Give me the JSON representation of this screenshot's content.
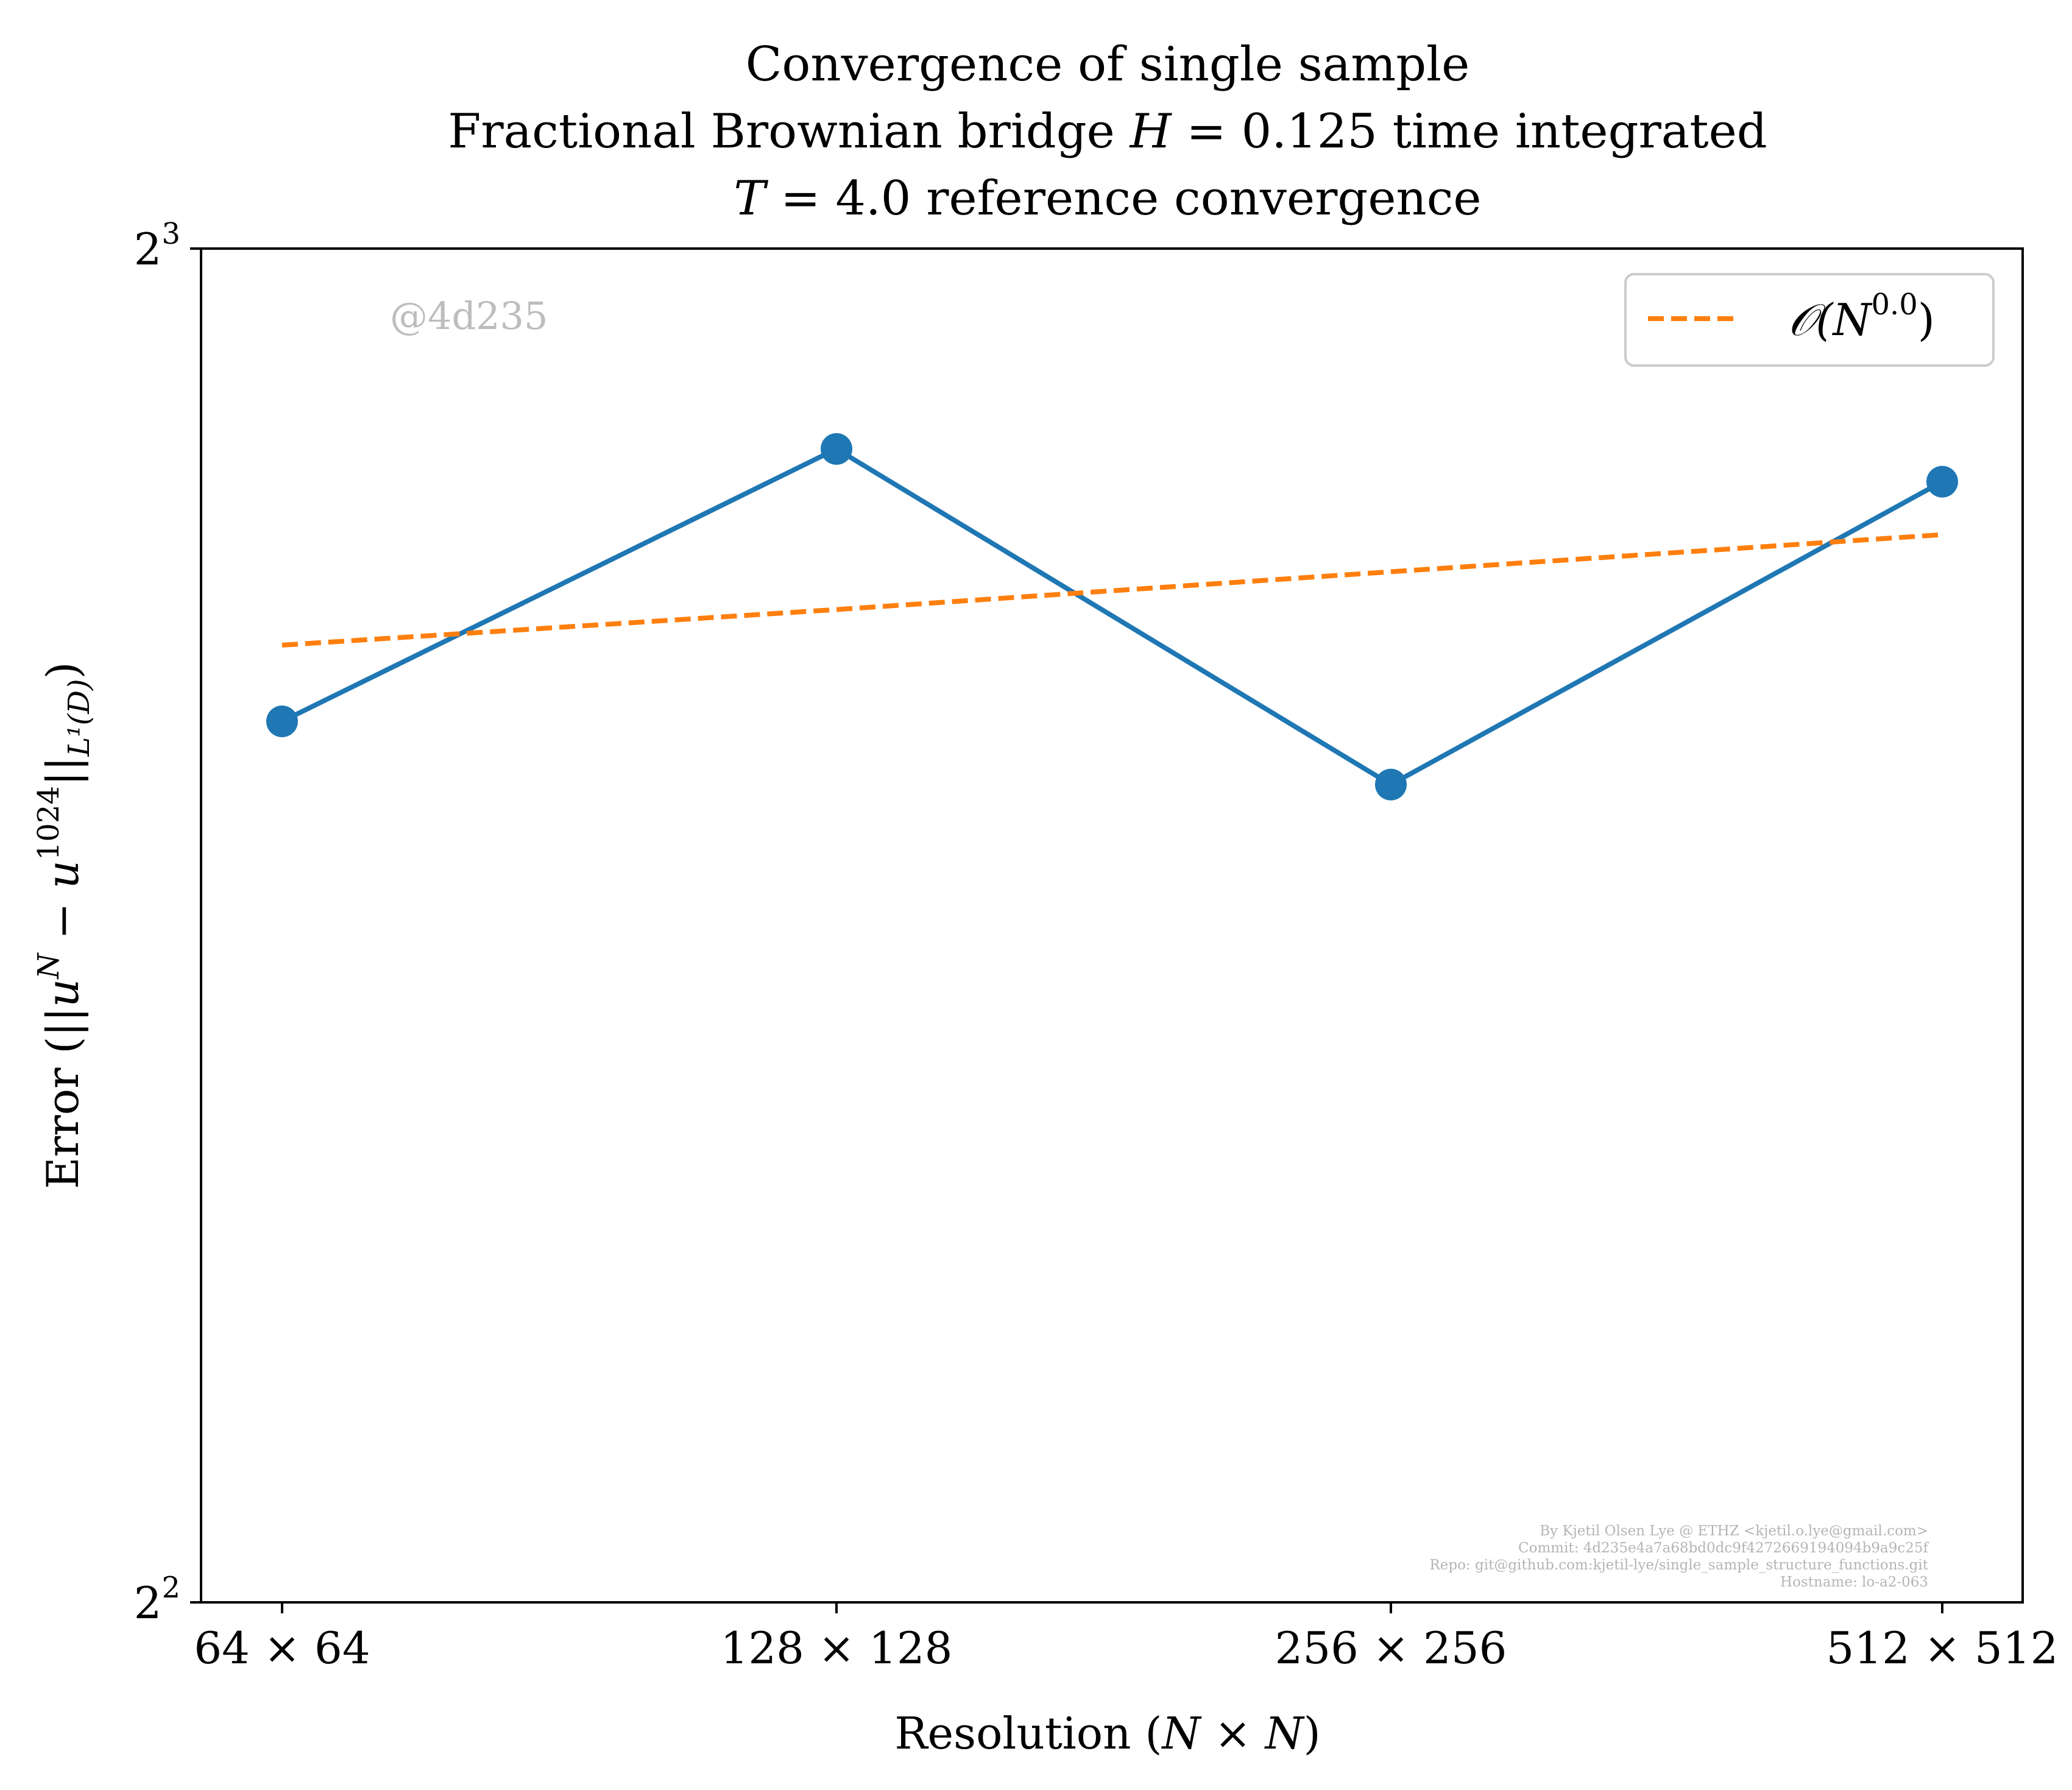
{
  "chart_data": {
    "type": "line",
    "title": {
      "line1": "Convergence of single sample",
      "line2_prefix": "Fractional Brownian bridge ",
      "line2_var": "H",
      "line2_value": " = 0.125 time integrated",
      "line3_var": "T",
      "line3_value": " = 4.0 reference convergence"
    },
    "xlabel": {
      "text": "Resolution (",
      "var1": "N",
      "times": " × ",
      "var2": "N",
      "close": ")"
    },
    "ylabel": {
      "text": "Error (||",
      "u": "u",
      "sup_n": "N",
      "minus": " − ",
      "u2": "u",
      "sup_ref": "1024",
      "bars": "||",
      "sub": "L¹(D)",
      "close": ")"
    },
    "categories": [
      "64 × 64",
      "128 × 128",
      "256 × 256",
      "512 × 512"
    ],
    "x": [
      64,
      128,
      256,
      512
    ],
    "y_scale": "log2",
    "ylim": [
      4,
      8
    ],
    "y_ticks": [
      {
        "base": "2",
        "exp": "2",
        "value": 4
      },
      {
        "base": "2",
        "exp": "3",
        "value": 8
      }
    ],
    "series": [
      {
        "name": "",
        "values": [
          6.28,
          7.22,
          6.08,
          7.1
        ],
        "color": "#1f77b4",
        "style": "solid",
        "marker": "circle"
      },
      {
        "name": "𝒪(N⁰·⁰)",
        "values": [
          6.53,
          6.65,
          6.78,
          6.91
        ],
        "color": "#ff7f0e",
        "style": "dashed",
        "marker": "none"
      }
    ],
    "legend": {
      "placement": "top-right",
      "label_O": "𝒪(",
      "label_N": "N",
      "label_exp": "0.0",
      "label_close": ")"
    },
    "grid": false
  },
  "watermark": "@4d235",
  "footer": {
    "line1": "By Kjetil Olsen Lye @ ETHZ <kjetil.o.lye@gmail.com>",
    "line2": "Commit: 4d235e4a7a68bd0dc9f4272669194094b9a9c25f",
    "line3": "Repo: git@github.com:kjetil-lye/single_sample_structure_functions.git",
    "line4": "Hostname: lo-a2-063"
  }
}
